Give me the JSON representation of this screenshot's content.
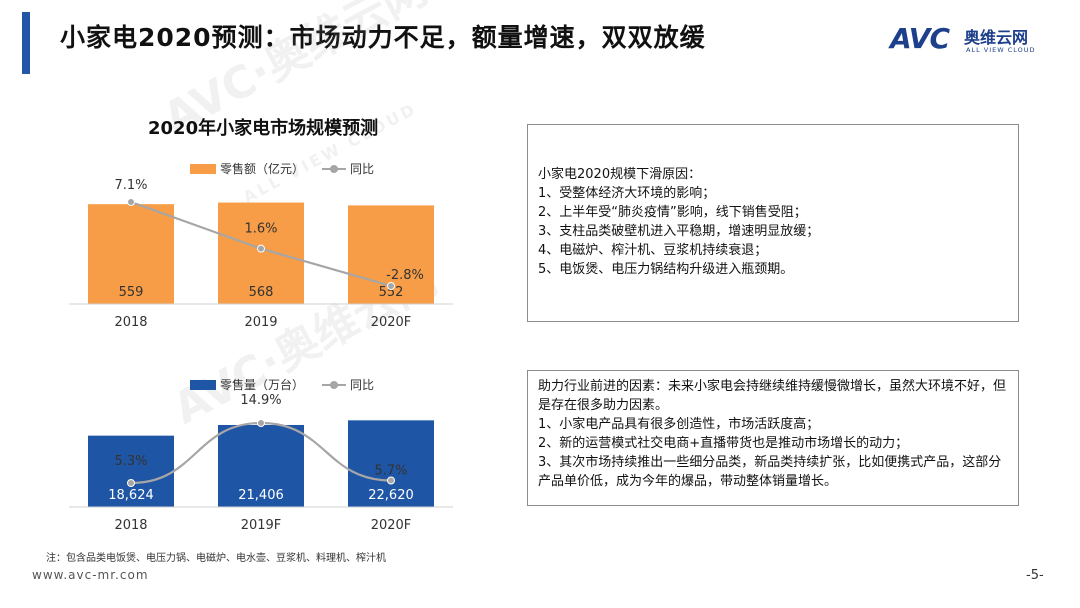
{
  "header": {
    "title": "小家电2020预测：市场动力不足，额量增速，双双放缓",
    "logo_mark": "AVC",
    "logo_cn": "奥维云网",
    "logo_en": "ALL VIEW CLOUD"
  },
  "colors": {
    "accent_blue": "#2456a8",
    "bar_orange": "#f79c47",
    "bar_blue": "#1f55a5",
    "line_gray": "#a6a6a6"
  },
  "watermark": {
    "text": "AVC·奥维云网",
    "sub": "ALL VIEW CLOUD"
  },
  "chart_title": "2020年小家电市场规模预测",
  "chart_data": [
    {
      "type": "bar",
      "categories": [
        "2018",
        "2019",
        "2020F"
      ],
      "series": [
        {
          "name": "零售额（亿元）",
          "values": [
            559,
            568,
            552
          ],
          "value_labels": [
            "559",
            "568",
            "552"
          ]
        },
        {
          "name": "同比",
          "type": "line",
          "values": [
            7.1,
            1.6,
            -2.8
          ],
          "value_labels": [
            "7.1%",
            "1.6%",
            "-2.8%"
          ]
        }
      ]
    },
    {
      "type": "bar",
      "categories": [
        "2018",
        "2019F",
        "2020F"
      ],
      "series": [
        {
          "name": "零售量（万台）",
          "values": [
            18624,
            21406,
            22620
          ],
          "value_labels": [
            "18,624",
            "21,406",
            "22,620"
          ]
        },
        {
          "name": "同比",
          "type": "line",
          "values": [
            5.3,
            14.9,
            5.7
          ],
          "value_labels": [
            "5.3%",
            "14.9%",
            "5.7%"
          ]
        }
      ]
    }
  ],
  "box1": {
    "lines": [
      "小家电2020规模下滑原因：",
      "1、受整体经济大环境的影响；",
      "2、上半年受“肺炎疫情”影响，线下销售受阻；",
      "3、支柱品类破壁机进入平稳期，增速明显放缓；",
      "4、电磁炉、榨汁机、豆浆机持续衰退；",
      "5、电饭煲、电压力锅结构升级进入瓶颈期。"
    ]
  },
  "box2": {
    "lines": [
      "助力行业前进的因素：未来小家电会持继续维持缓慢微增长，虽然大环境不好，但是存在很多助力因素。",
      "1、小家电产品具有很多创造性，市场活跃度高；",
      "2、新的运营模式社交电商+直播带货也是推动市场增长的动力；",
      "3、其次市场持续推出一些细分品类，新品类持续扩张，比如便携式产品，这部分产品单价低，成为今年的爆品，带动整体销量增长。"
    ]
  },
  "footnote": "注：包含品类电饭煲、电压力锅、电磁炉、电水壶、豆浆机、料理机、榨汁机",
  "website": "www.avc-mr.com",
  "page_number": "-5-"
}
